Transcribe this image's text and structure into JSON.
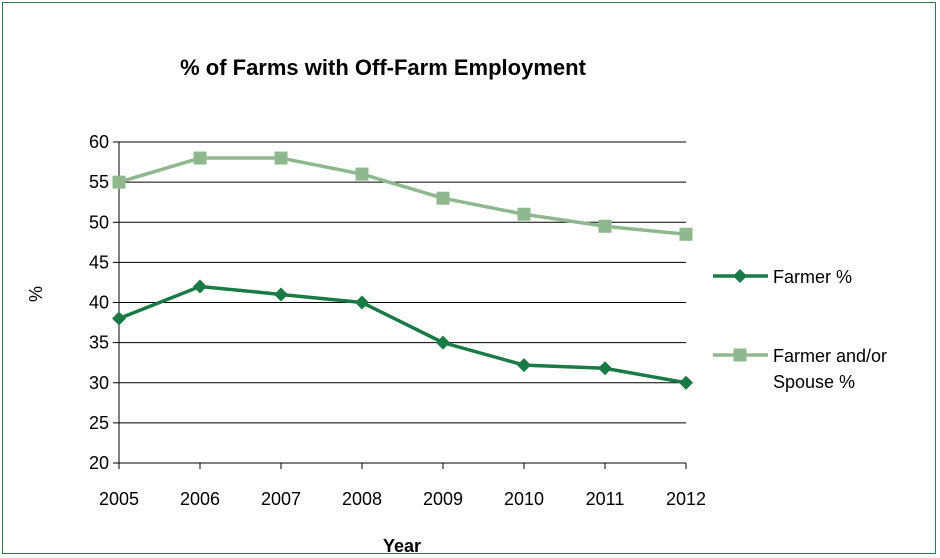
{
  "chart_data": {
    "type": "line",
    "title": "% of Farms with Off-Farm Employment",
    "xlabel": "Year",
    "ylabel": "%",
    "categories": [
      "2005",
      "2006",
      "2007",
      "2008",
      "2009",
      "2010",
      "2011",
      "2012"
    ],
    "ylim": [
      20,
      60
    ],
    "yticks": [
      20,
      25,
      30,
      35,
      40,
      45,
      50,
      55,
      60
    ],
    "grid": true,
    "legend_position": "right",
    "series": [
      {
        "name": "Farmer %",
        "legend_lines": [
          "Farmer %"
        ],
        "marker": "diamond",
        "color": "#1a7a45",
        "values": [
          38,
          42,
          41,
          40,
          35,
          32.2,
          31.8,
          30
        ]
      },
      {
        "name": "Farmer and/or Spouse %",
        "legend_lines": [
          "Farmer and/or",
          "Spouse %"
        ],
        "marker": "square",
        "color": "#8fb88f",
        "values": [
          55,
          58,
          58,
          56,
          53,
          51,
          49.5,
          48.5
        ]
      }
    ]
  }
}
